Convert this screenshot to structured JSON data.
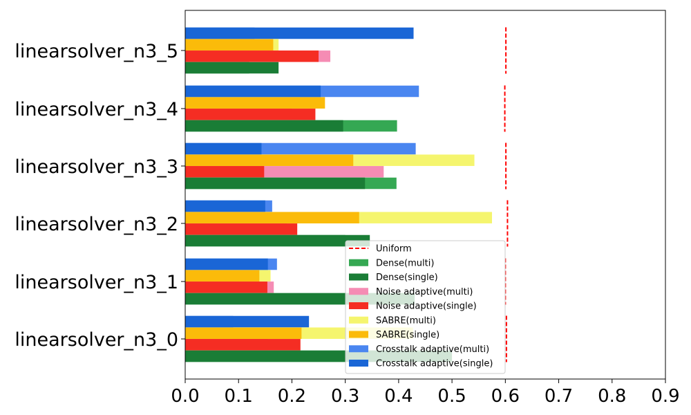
{
  "chart_data": {
    "type": "bar",
    "orientation": "horizontal",
    "categories": [
      "linearsolver_n3_0",
      "linearsolver_n3_1",
      "linearsolver_n3_2",
      "linearsolver_n3_3",
      "linearsolver_n3_4",
      "linearsolver_n3_5"
    ],
    "xlim": [
      0,
      0.9
    ],
    "x_ticks": [
      "0.0",
      "0.1",
      "0.2",
      "0.3",
      "0.4",
      "0.5",
      "0.6",
      "0.7",
      "0.8",
      "0.9"
    ],
    "title": "",
    "xlabel": "",
    "ylabel": "",
    "grid": false,
    "legend_position": "lower-right",
    "groups": [
      {
        "name": "Crosstalk adaptive",
        "multi": {
          "name": "Crosstalk adaptive(multi)",
          "color": "#4a86f0",
          "values": [
            0.09,
            0.172,
            0.163,
            0.432,
            0.438,
            0.13
          ]
        },
        "single": {
          "name": "Crosstalk adaptive(single)",
          "color": "#1a66d6",
          "values": [
            0.232,
            0.155,
            0.15,
            0.143,
            0.254,
            0.428
          ]
        }
      },
      {
        "name": "SABRE",
        "multi": {
          "name": "SABRE(multi)",
          "color": "#f5f56e",
          "values": [
            0.427,
            0.16,
            0.575,
            0.542,
            0.215,
            0.175
          ]
        },
        "single": {
          "name": "SABRE(single)",
          "color": "#fbbb0a",
          "values": [
            0.218,
            0.139,
            0.326,
            0.315,
            0.262,
            0.165
          ]
        }
      },
      {
        "name": "Noise adaptive",
        "multi": {
          "name": "Noise adaptive(multi)",
          "color": "#f58cb4",
          "values": [
            0.155,
            0.166,
            0.19,
            0.372,
            0.2,
            0.272
          ]
        },
        "single": {
          "name": "Noise adaptive(single)",
          "color": "#f52d23",
          "values": [
            0.216,
            0.154,
            0.21,
            0.148,
            0.244,
            0.25
          ]
        }
      },
      {
        "name": "Dense",
        "multi": {
          "name": "Dense(multi)",
          "color": "#35a853",
          "values": [
            0.42,
            0.43,
            0.3,
            0.396,
            0.397,
            0.12
          ]
        },
        "single": {
          "name": "Dense(single)",
          "color": "#1a7d36",
          "values": [
            0.5,
            0.43,
            0.346,
            0.337,
            0.296,
            0.175
          ]
        }
      }
    ],
    "uniform": {
      "name": "Uniform",
      "color": "#ff0000",
      "values": [
        0.602,
        0.6,
        0.604,
        0.601,
        0.599,
        0.601
      ]
    },
    "legend_order": [
      "Uniform",
      "Dense(multi)",
      "Dense(single)",
      "Noise adaptive(multi)",
      "Noise adaptive(single)",
      "SABRE(multi)",
      "SABRE(single)",
      "Crosstalk adaptive(multi)",
      "Crosstalk adaptive(single)"
    ]
  }
}
